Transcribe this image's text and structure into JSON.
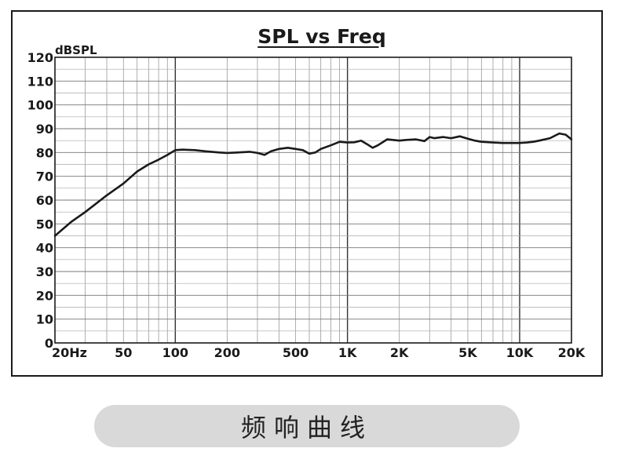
{
  "chart_data": {
    "type": "line",
    "title": "SPL vs Freq",
    "ylabel": "dBSPL",
    "xscale": "log",
    "xlim": [
      20,
      20000
    ],
    "ylim": [
      0,
      120
    ],
    "grid": true,
    "yticks": [
      0,
      10,
      20,
      30,
      40,
      50,
      60,
      70,
      80,
      90,
      100,
      110,
      120
    ],
    "xticks": [
      {
        "value": 20,
        "label": "20Hz"
      },
      {
        "value": 50,
        "label": "50"
      },
      {
        "value": 100,
        "label": "100"
      },
      {
        "value": 200,
        "label": "200"
      },
      {
        "value": 500,
        "label": "500"
      },
      {
        "value": 1000,
        "label": "1K"
      },
      {
        "value": 2000,
        "label": "2K"
      },
      {
        "value": 5000,
        "label": "5K"
      },
      {
        "value": 10000,
        "label": "10K"
      },
      {
        "value": 20000,
        "label": "20K"
      }
    ],
    "series": [
      {
        "color": "#1a1a1a",
        "x": [
          20,
          25,
          30,
          40,
          50,
          60,
          70,
          80,
          90,
          100,
          110,
          130,
          150,
          180,
          200,
          230,
          270,
          300,
          330,
          360,
          400,
          450,
          500,
          550,
          600,
          650,
          700,
          800,
          900,
          1000,
          1100,
          1200,
          1300,
          1400,
          1500,
          1700,
          2000,
          2200,
          2500,
          2800,
          3000,
          3200,
          3600,
          4000,
          4500,
          5000,
          5500,
          6000,
          7000,
          8000,
          9000,
          10000,
          11000,
          12000,
          13000,
          15000,
          17000,
          18500,
          20000
        ],
        "y": [
          45,
          51,
          55,
          62,
          67,
          72,
          75,
          77,
          79,
          81,
          81.2,
          81,
          80.5,
          80,
          79.8,
          80,
          80.3,
          79.8,
          79,
          80.5,
          81.5,
          82,
          81.5,
          81,
          79.5,
          80,
          81.5,
          83,
          84.5,
          84.2,
          84.3,
          85,
          83.5,
          82,
          83,
          85.5,
          85,
          85.3,
          85.5,
          84.8,
          86.5,
          86,
          86.5,
          86,
          86.8,
          85.8,
          85,
          84.5,
          84.2,
          84,
          84,
          84,
          84.2,
          84.5,
          85,
          86,
          88,
          87.5,
          85.5
        ]
      }
    ]
  },
  "caption": "频响曲线"
}
